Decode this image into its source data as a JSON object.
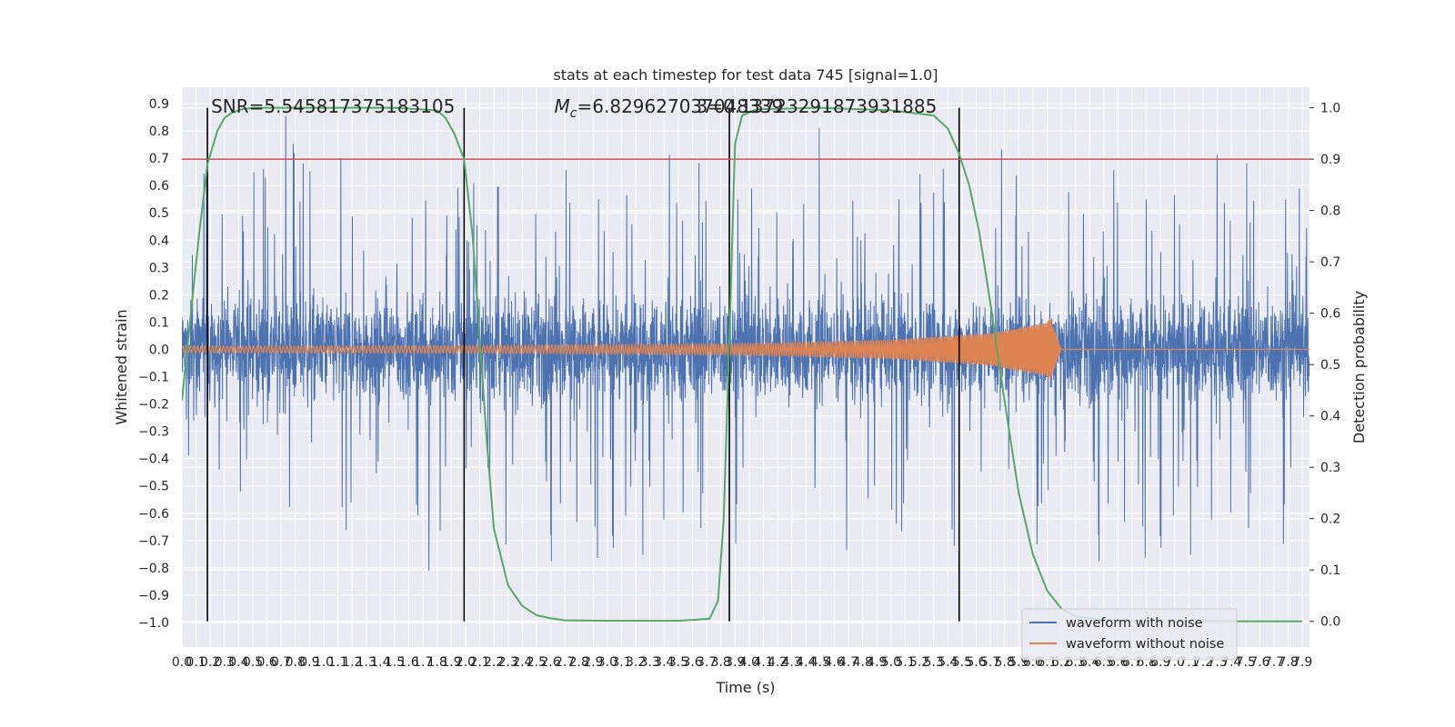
{
  "chart_data": {
    "type": "line",
    "title": "stats at each timestep for test data 745 [signal=1.0]",
    "xlabel": "Time (s)",
    "ylabel": "Whitened strain",
    "y2label": "Detection probability",
    "xlim": [
      0.0,
      7.95
    ],
    "ylim": [
      -1.09,
      0.96
    ],
    "y2lim": [
      -0.05,
      1.04
    ],
    "x_ticks": [
      "0.0",
      "0.1",
      "0.2",
      "0.3",
      "0.4",
      "0.5",
      "0.6",
      "0.7",
      "0.8",
      "0.9",
      "1.0",
      "1.1",
      "1.2",
      "1.3",
      "1.4",
      "1.5",
      "1.6",
      "1.7",
      "1.8",
      "1.9",
      "2.0",
      "2.1",
      "2.2",
      "2.3",
      "2.4",
      "2.5",
      "2.6",
      "2.7",
      "2.8",
      "2.9",
      "3.0",
      "3.1",
      "3.2",
      "3.3",
      "3.4",
      "3.5",
      "3.6",
      "3.7",
      "3.8",
      "3.9",
      "4.0",
      "4.1",
      "4.2",
      "4.3",
      "4.4",
      "4.5",
      "4.6",
      "4.7",
      "4.8",
      "4.9",
      "5.0",
      "5.1",
      "5.2",
      "5.3",
      "5.4",
      "5.5",
      "5.6",
      "5.7",
      "5.8",
      "5.9",
      "6.0",
      "6.1",
      "6.2",
      "6.3",
      "6.4",
      "6.5",
      "6.6",
      "6.7",
      "6.8",
      "6.9",
      "7.0",
      "7.1",
      "7.2",
      "7.3",
      "7.4",
      "7.5",
      "7.6",
      "7.7",
      "7.8",
      "7.9"
    ],
    "y_ticks": [
      "0.9",
      "0.8",
      "0.7",
      "0.6",
      "0.5",
      "0.4",
      "0.3",
      "0.2",
      "0.1",
      "0.0",
      "−0.1",
      "−0.2",
      "−0.3",
      "−0.4",
      "−0.5",
      "−0.6",
      "−0.7",
      "−0.8",
      "−0.9",
      "−1.0"
    ],
    "y2_ticks": [
      "1.0",
      "0.9",
      "0.8",
      "0.7",
      "0.6",
      "0.5",
      "0.4",
      "0.3",
      "0.2",
      "0.1",
      "0.0"
    ],
    "annotations": [
      {
        "text": "SNR=5.545817375183105",
        "x": 0.18,
        "y": 0.88
      },
      {
        "text_main": "M",
        "text_sub": "c",
        "text_rest": "=6.829627037048339",
        "x": 2.6,
        "y": 0.88
      },
      {
        "text": "3=0.13723291873931885",
        "x": 3.6,
        "y": 0.88
      }
    ],
    "threshold": {
      "y2": 0.9
    },
    "vlines": [
      0.18,
      1.99,
      3.86,
      5.48
    ],
    "series": [
      {
        "name": "waveform with noise",
        "color": "#4c72b0",
        "envelope": {
          "x": [
            0.0,
            7.95
          ],
          "lo": -0.6,
          "hi": 0.6
        }
      },
      {
        "name": "waveform without noise",
        "color": "#dd8452",
        "amplitude": {
          "x": [
            0.0,
            2.0,
            3.9,
            5.0,
            5.7,
            6.1,
            6.12,
            6.2,
            7.95
          ],
          "y": [
            0.012,
            0.014,
            0.02,
            0.035,
            0.06,
            0.1,
            0.12,
            0.0,
            0.0
          ]
        }
      },
      {
        "name": "detection probability",
        "color": "#55a868",
        "axis": "right",
        "x": [
          0.0,
          0.12,
          0.18,
          0.25,
          0.3,
          0.35,
          0.42,
          0.5,
          0.6,
          0.8,
          1.5,
          1.8,
          1.86,
          1.92,
          1.99,
          2.05,
          2.1,
          2.15,
          2.2,
          2.3,
          2.4,
          2.5,
          2.6,
          2.7,
          3.0,
          3.5,
          3.72,
          3.78,
          3.82,
          3.86,
          3.9,
          3.95,
          4.05,
          4.5,
          5.0,
          5.3,
          5.4,
          5.48,
          5.55,
          5.62,
          5.7,
          5.8,
          5.9,
          6.0,
          6.1,
          6.2,
          6.3,
          6.5,
          7.0,
          7.9
        ],
        "y": [
          0.43,
          0.75,
          0.89,
          0.955,
          0.98,
          0.99,
          0.997,
          1.0,
          1.0,
          1.0,
          1.0,
          0.995,
          0.98,
          0.95,
          0.9,
          0.75,
          0.55,
          0.35,
          0.18,
          0.07,
          0.03,
          0.012,
          0.006,
          0.002,
          0.001,
          0.001,
          0.005,
          0.04,
          0.2,
          0.55,
          0.93,
          0.985,
          0.997,
          1.0,
          0.995,
          0.985,
          0.96,
          0.91,
          0.85,
          0.76,
          0.62,
          0.43,
          0.25,
          0.13,
          0.06,
          0.025,
          0.01,
          0.002,
          0.0,
          0.0
        ]
      }
    ],
    "legend": {
      "position": "lower-right",
      "entries": [
        "waveform with noise",
        "waveform without noise"
      ]
    },
    "grid": true
  }
}
